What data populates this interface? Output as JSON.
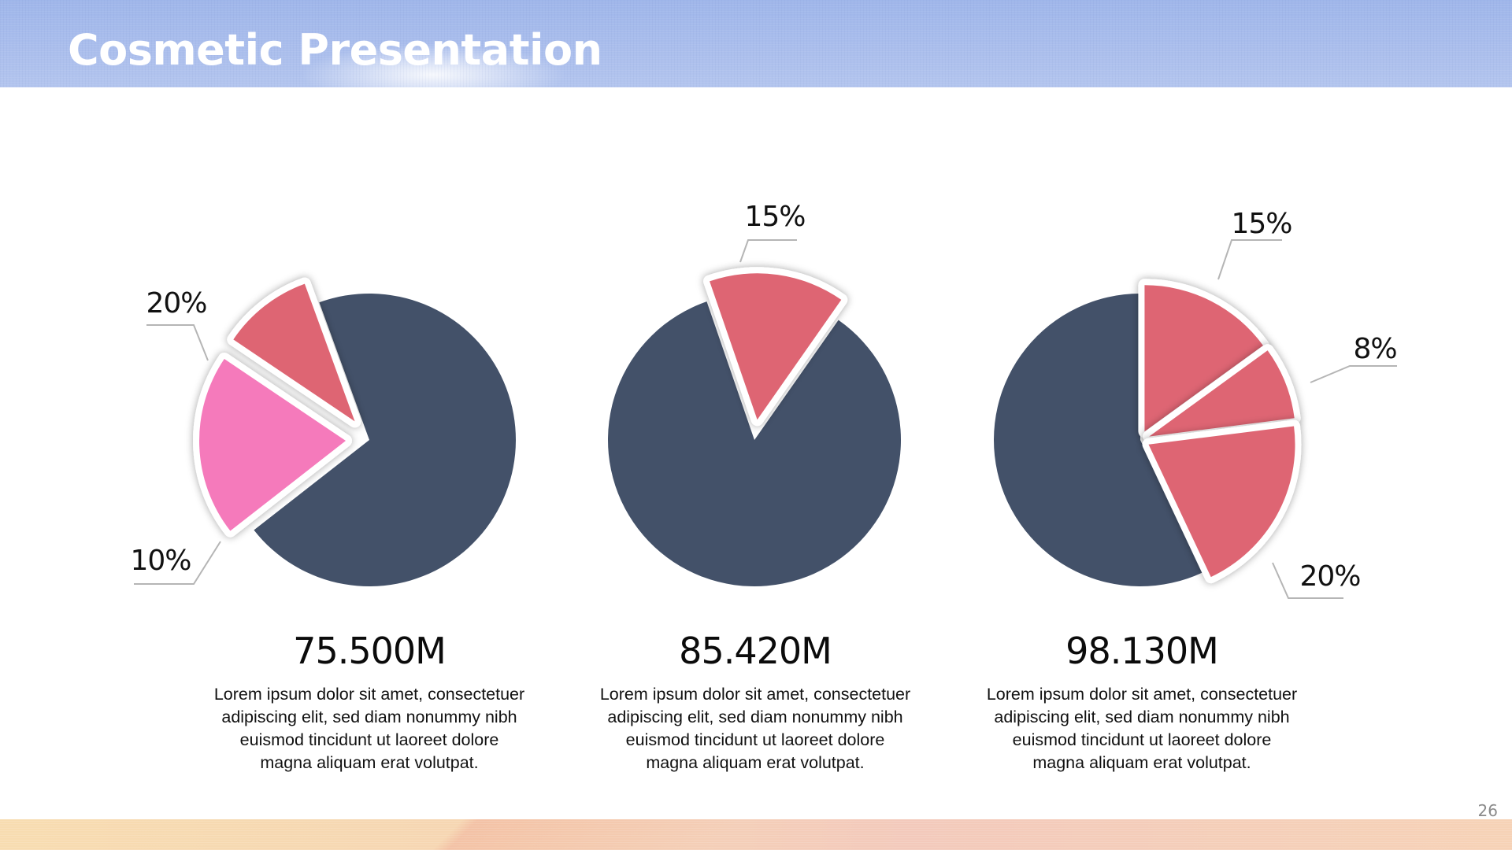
{
  "slide": {
    "title": "Cosmetic Presentation",
    "page_number": "26"
  },
  "colors": {
    "dark": "#435169",
    "pink": "#f57abb",
    "red": "#de6573",
    "leader": "#b5b5b5"
  },
  "chart_data": [
    {
      "type": "pie",
      "metric": "75.500M",
      "description": "Lorem ipsum dolor sit amet, consectetuer adipiscing elit, sed diam nonummy nibh euismod tincidunt ut laoreet dolore magna aliquam erat volutpat.",
      "slices": [
        {
          "label": "20%",
          "value": 20,
          "color": "#f57abb",
          "exploded": true
        },
        {
          "label": "10%",
          "value": 10,
          "color": "#de6573",
          "exploded": true
        },
        {
          "label": "",
          "value": 70,
          "color": "#435169",
          "exploded": false
        }
      ]
    },
    {
      "type": "pie",
      "metric": "85.420M",
      "description": "Lorem ipsum dolor sit amet, consectetuer adipiscing elit, sed diam nonummy nibh euismod tincidunt ut laoreet dolore magna aliquam erat volutpat.",
      "slices": [
        {
          "label": "15%",
          "value": 15,
          "color": "#de6573",
          "exploded": true
        },
        {
          "label": "",
          "value": 85,
          "color": "#435169",
          "exploded": false
        }
      ]
    },
    {
      "type": "pie",
      "metric": "98.130M",
      "description": "Lorem ipsum dolor sit amet, consectetuer adipiscing elit, sed diam nonummy nibh euismod tincidunt ut laoreet dolore magna aliquam erat volutpat.",
      "slices": [
        {
          "label": "15%",
          "value": 15,
          "color": "#de6573",
          "exploded": true
        },
        {
          "label": "8%",
          "value": 8,
          "color": "#de6573",
          "exploded": true
        },
        {
          "label": "20%",
          "value": 20,
          "color": "#de6573",
          "exploded": true
        },
        {
          "label": "",
          "value": 57,
          "color": "#435169",
          "exploded": false
        }
      ]
    }
  ]
}
